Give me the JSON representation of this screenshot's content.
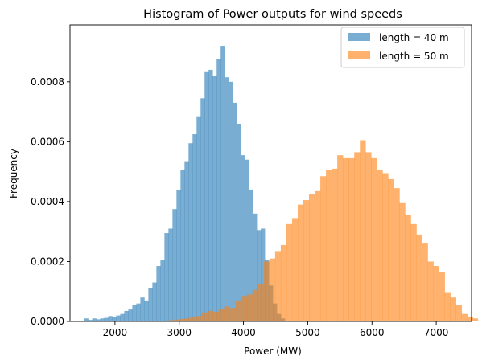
{
  "chart_data": {
    "type": "histogram",
    "title": "Histogram of Power outputs for wind speeds",
    "xlabel": "Power (MW)",
    "ylabel": "Frequency",
    "xlim": [
      1300,
      7550
    ],
    "ylim": [
      0,
      0.00099
    ],
    "xticks": [
      2000,
      3000,
      4000,
      5000,
      6000,
      7000
    ],
    "yticks": [
      0,
      0.0002,
      0.0004,
      0.0006,
      0.0008
    ],
    "ytick_labels": [
      "0.0000",
      "0.0002",
      "0.0004",
      "0.0006",
      "0.0008"
    ],
    "legend_position": "upper right",
    "grid": false,
    "series": [
      {
        "name": "length = 40 m",
        "color": "#1f77b4",
        "opacity": 0.6,
        "bin_start": 1520,
        "bin_width": 62.5,
        "values": [
          1e-05,
          5e-06,
          1e-05,
          7e-06,
          1e-05,
          1.2e-05,
          1.8e-05,
          1.5e-05,
          2e-05,
          2.5e-05,
          3.5e-05,
          4e-05,
          5.5e-05,
          6e-05,
          8e-05,
          7e-05,
          0.00011,
          0.00013,
          0.000185,
          0.000205,
          0.000295,
          0.00031,
          0.000375,
          0.00044,
          0.000505,
          0.000535,
          0.000595,
          0.000625,
          0.000685,
          0.000745,
          0.000835,
          0.00084,
          0.00082,
          0.000875,
          0.00092,
          0.000815,
          0.0008,
          0.00073,
          0.00066,
          0.000555,
          0.00054,
          0.00044,
          0.00036,
          0.000305,
          0.00031,
          0.000205,
          0.00012,
          6e-05,
          2.5e-05,
          1e-05
        ]
      },
      {
        "name": "length = 50 m",
        "color": "#ff7f0e",
        "opacity": 0.6,
        "bin_start": 2820,
        "bin_width": 88,
        "values": [
          4e-06,
          6e-06,
          8e-06,
          1e-05,
          1.4e-05,
          1.8e-05,
          3e-05,
          3.5e-05,
          3.2e-05,
          4e-05,
          5e-05,
          4.5e-05,
          7e-05,
          8.5e-05,
          9e-05,
          0.000105,
          0.000125,
          0.0002,
          0.00021,
          0.000235,
          0.000255,
          0.000325,
          0.000345,
          0.00039,
          0.000405,
          0.000425,
          0.000435,
          0.000485,
          0.000505,
          0.00051,
          0.000555,
          0.000545,
          0.000545,
          0.000565,
          0.000605,
          0.000565,
          0.000545,
          0.000505,
          0.000495,
          0.000475,
          0.000445,
          0.000395,
          0.000355,
          0.000325,
          0.00029,
          0.00026,
          0.0002,
          0.000185,
          0.000165,
          9.5e-05,
          8e-05,
          5.5e-05,
          2.5e-05,
          1.5e-05,
          1e-05
        ]
      }
    ]
  }
}
